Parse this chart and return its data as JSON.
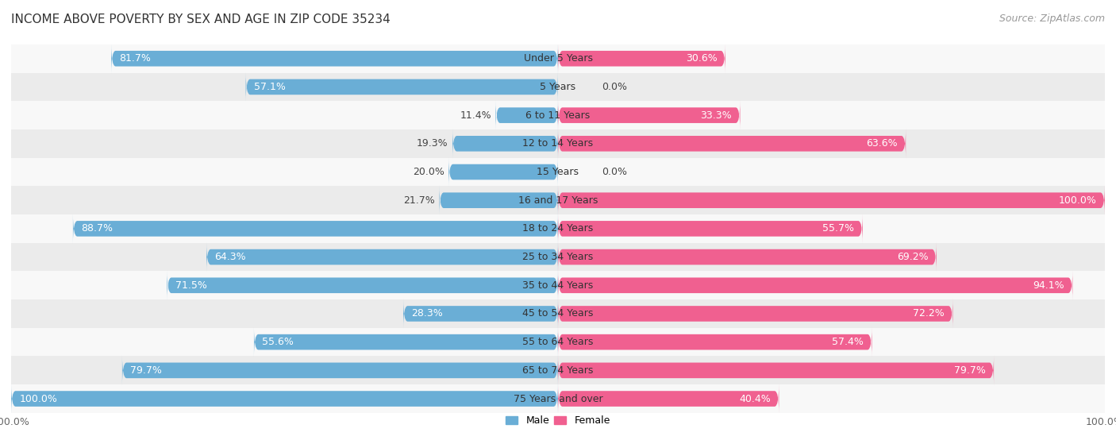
{
  "title": "INCOME ABOVE POVERTY BY SEX AND AGE IN ZIP CODE 35234",
  "source": "Source: ZipAtlas.com",
  "categories": [
    "Under 5 Years",
    "5 Years",
    "6 to 11 Years",
    "12 to 14 Years",
    "15 Years",
    "16 and 17 Years",
    "18 to 24 Years",
    "25 to 34 Years",
    "35 to 44 Years",
    "45 to 54 Years",
    "55 to 64 Years",
    "65 to 74 Years",
    "75 Years and over"
  ],
  "male": [
    81.7,
    57.1,
    11.4,
    19.3,
    20.0,
    21.7,
    88.7,
    64.3,
    71.5,
    28.3,
    55.6,
    79.7,
    100.0
  ],
  "female": [
    30.6,
    0.0,
    33.3,
    63.6,
    0.0,
    100.0,
    55.7,
    69.2,
    94.1,
    72.2,
    57.4,
    79.7,
    40.4
  ],
  "male_color": "#6aaed6",
  "male_color_light": "#b8d9ee",
  "female_color": "#f06090",
  "female_color_light": "#f8b8cc",
  "male_label": "Male",
  "female_label": "Female",
  "background_row_odd": "#ebebeb",
  "background_row_even": "#f8f8f8",
  "title_fontsize": 11,
  "label_fontsize": 9,
  "tick_fontsize": 9,
  "source_fontsize": 9
}
